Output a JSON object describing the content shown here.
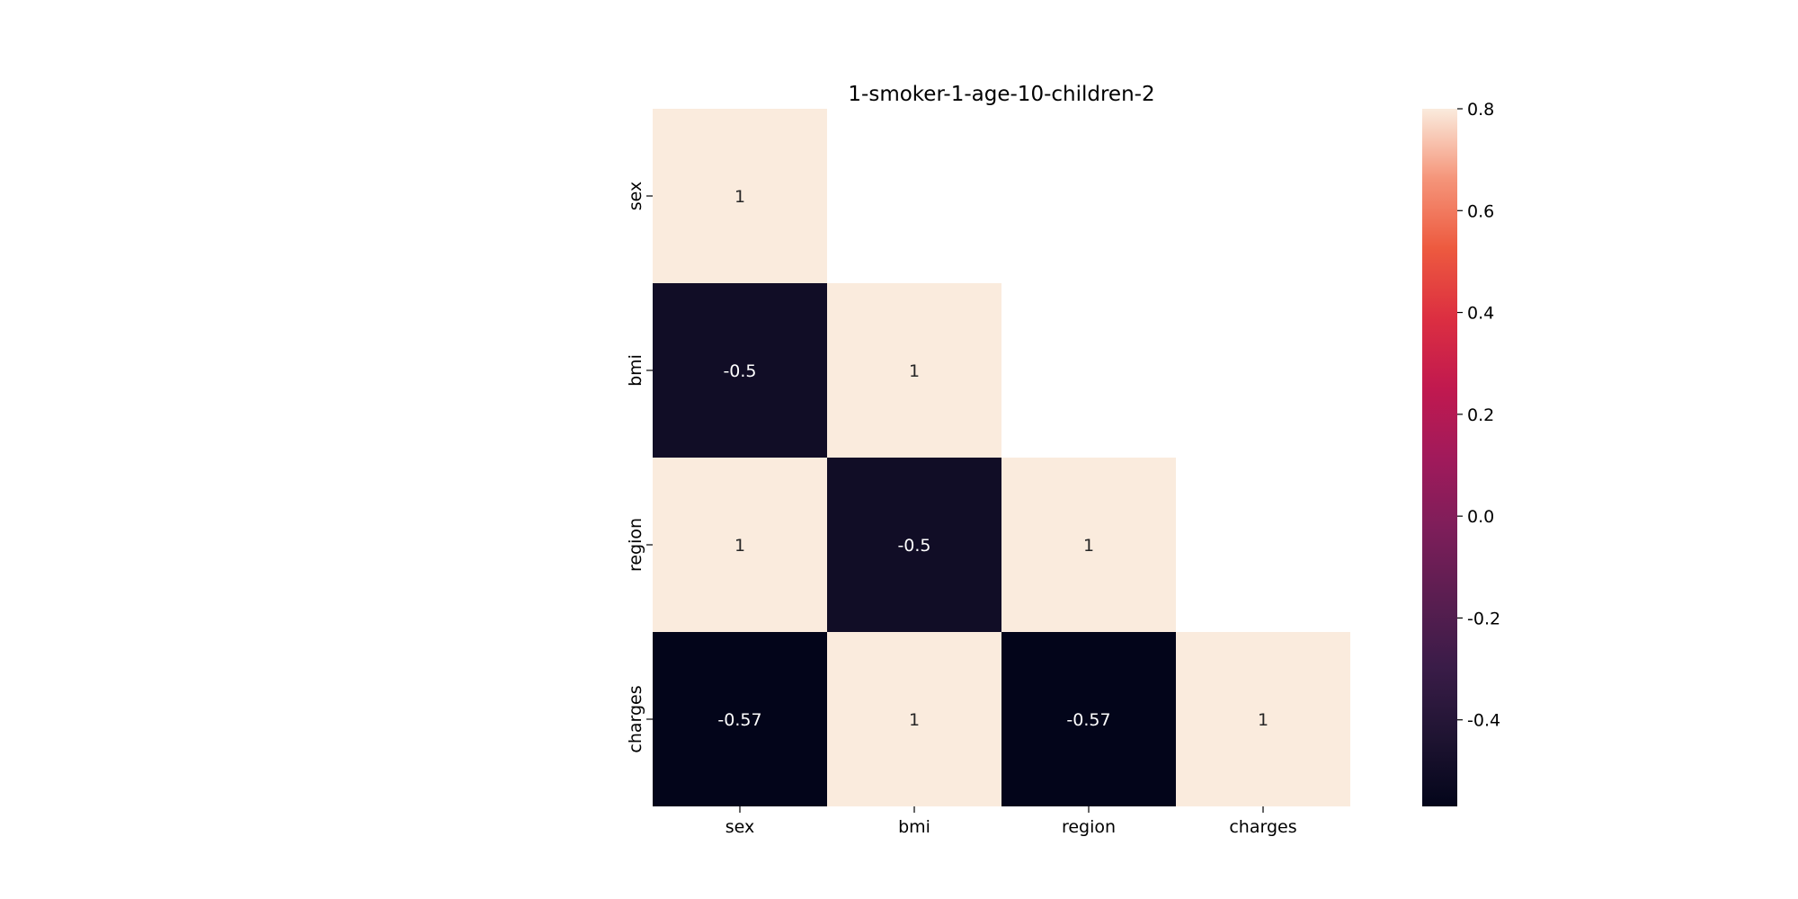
{
  "chart_data": {
    "type": "heatmap",
    "title": "1-smoker-1-age-10-children-2",
    "x_labels": [
      "sex",
      "bmi",
      "region",
      "charges"
    ],
    "y_labels": [
      "sex",
      "bmi",
      "region",
      "charges"
    ],
    "values": [
      [
        1,
        null,
        null,
        null
      ],
      [
        -0.5,
        1,
        null,
        null
      ],
      [
        1,
        -0.5,
        1,
        null
      ],
      [
        -0.57,
        1,
        -0.57,
        1
      ]
    ],
    "cell_labels": [
      [
        "1",
        null,
        null,
        null
      ],
      [
        "-0.5",
        "1",
        null,
        null
      ],
      [
        "1",
        "-0.5",
        "1",
        null
      ],
      [
        "-0.57",
        "1",
        "-0.57",
        "1"
      ]
    ],
    "mask": "upper-triangle",
    "colormap": "rocket",
    "colorbar": {
      "vmin": -0.57,
      "vmax": 0.8,
      "ticks": [
        -0.4,
        -0.2,
        0.0,
        0.2,
        0.4,
        0.6,
        0.8
      ],
      "tick_labels": [
        "-0.4",
        "-0.2",
        "0.0",
        "0.2",
        "0.4",
        "0.6",
        "0.8"
      ]
    }
  }
}
